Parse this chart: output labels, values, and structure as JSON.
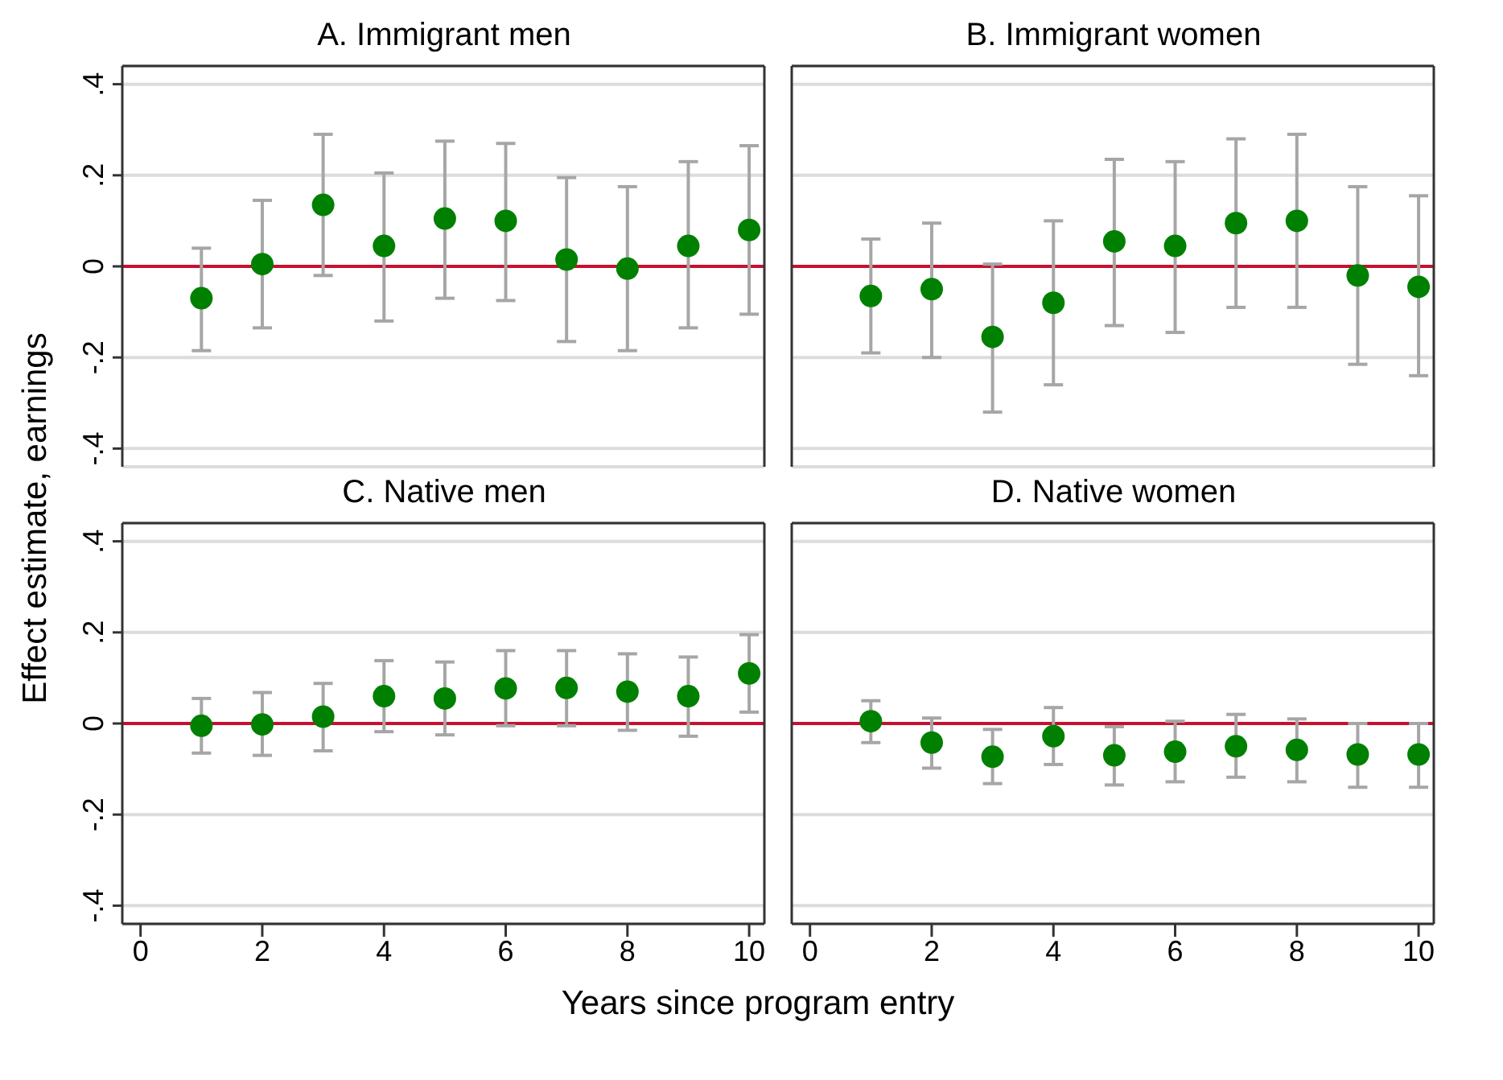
{
  "chart_data": [
    {
      "type": "scatter",
      "title": "A. Immigrant men",
      "ylabel": "Effect estimate, earnings",
      "x": [
        1,
        2,
        3,
        4,
        5,
        6,
        7,
        8,
        9,
        10
      ],
      "series": [
        {
          "color": "#008000",
          "values": [
            -0.07,
            0.005,
            0.135,
            0.045,
            0.105,
            0.1,
            0.015,
            -0.005,
            0.045,
            0.08
          ],
          "errors": [
            [
              -0.185,
              0.04
            ],
            [
              -0.135,
              0.145
            ],
            [
              -0.02,
              0.29
            ],
            [
              -0.12,
              0.205
            ],
            [
              -0.07,
              0.275
            ],
            [
              -0.075,
              0.27
            ],
            [
              -0.165,
              0.195
            ],
            [
              -0.185,
              0.175
            ],
            [
              -0.135,
              0.23
            ],
            [
              -0.105,
              0.265
            ]
          ]
        }
      ],
      "xlim": [
        -0.3,
        10.25
      ],
      "ylim": [
        -0.44,
        0.44
      ],
      "xticks": [
        0,
        2,
        4,
        6,
        8,
        10
      ],
      "yticks": [
        {
          "value": -0.4,
          "label": "-.4"
        },
        {
          "value": -0.2,
          "label": "-.2"
        },
        0,
        {
          "value": 0.2,
          "label": ".2"
        },
        {
          "value": 0.4,
          "label": ".4"
        }
      ],
      "ref_lines": [
        {
          "axis": "y",
          "value": 0,
          "color": "#c8102e"
        }
      ],
      "grid": "y",
      "marker": "circle",
      "tick_labels": "y"
    },
    {
      "type": "scatter",
      "title": "B. Immigrant women",
      "x": [
        1,
        2,
        3,
        4,
        5,
        6,
        7,
        8,
        9,
        10
      ],
      "series": [
        {
          "color": "#008000",
          "values": [
            -0.065,
            -0.05,
            -0.155,
            -0.08,
            0.055,
            0.045,
            0.095,
            0.1,
            -0.02,
            -0.045
          ],
          "errors": [
            [
              -0.19,
              0.06
            ],
            [
              -0.2,
              0.095
            ],
            [
              -0.32,
              0.005
            ],
            [
              -0.26,
              0.1
            ],
            [
              -0.13,
              0.235
            ],
            [
              -0.145,
              0.23
            ],
            [
              -0.09,
              0.28
            ],
            [
              -0.09,
              0.29
            ],
            [
              -0.215,
              0.175
            ],
            [
              -0.24,
              0.155
            ]
          ]
        }
      ],
      "xlim": [
        -0.3,
        10.25
      ],
      "ylim": [
        -0.44,
        0.44
      ],
      "xticks": [
        0,
        2,
        4,
        6,
        8,
        10
      ],
      "yticks": [
        -0.4,
        -0.2,
        0,
        0.2,
        0.4
      ],
      "ref_lines": [
        {
          "axis": "y",
          "value": 0,
          "color": "#c8102e"
        }
      ],
      "grid": "y",
      "marker": "circle",
      "tick_labels": false
    },
    {
      "type": "scatter",
      "title": "C. Native men",
      "xlabel": "Years since program entry",
      "x": [
        1,
        2,
        3,
        4,
        5,
        6,
        7,
        8,
        9,
        10
      ],
      "series": [
        {
          "color": "#008000",
          "values": [
            -0.005,
            -0.002,
            0.015,
            0.06,
            0.055,
            0.077,
            0.078,
            0.07,
            0.06,
            0.11
          ],
          "errors": [
            [
              -0.065,
              0.055
            ],
            [
              -0.07,
              0.068
            ],
            [
              -0.06,
              0.088
            ],
            [
              -0.018,
              0.138
            ],
            [
              -0.025,
              0.135
            ],
            [
              -0.005,
              0.16
            ],
            [
              -0.005,
              0.16
            ],
            [
              -0.015,
              0.153
            ],
            [
              -0.028,
              0.146
            ],
            [
              0.025,
              0.195
            ]
          ]
        }
      ],
      "xlim": [
        -0.3,
        10.25
      ],
      "ylim": [
        -0.44,
        0.44
      ],
      "xticks": [
        0,
        2,
        4,
        6,
        8,
        10
      ],
      "yticks": [
        {
          "value": -0.4,
          "label": "-.4"
        },
        {
          "value": -0.2,
          "label": "-.2"
        },
        0,
        {
          "value": 0.2,
          "label": ".2"
        },
        {
          "value": 0.4,
          "label": ".4"
        }
      ],
      "ref_lines": [
        {
          "axis": "y",
          "value": 0,
          "color": "#c8102e"
        }
      ],
      "grid": "y",
      "marker": "circle"
    },
    {
      "type": "scatter",
      "title": "D. Native women",
      "x": [
        1,
        2,
        3,
        4,
        5,
        6,
        7,
        8,
        9,
        10
      ],
      "series": [
        {
          "color": "#008000",
          "values": [
            0.005,
            -0.042,
            -0.073,
            -0.028,
            -0.07,
            -0.062,
            -0.05,
            -0.058,
            -0.068,
            -0.068
          ],
          "errors": [
            [
              -0.042,
              0.05
            ],
            [
              -0.098,
              0.012
            ],
            [
              -0.132,
              -0.013
            ],
            [
              -0.09,
              0.035
            ],
            [
              -0.135,
              -0.007
            ],
            [
              -0.128,
              0.005
            ],
            [
              -0.118,
              0.02
            ],
            [
              -0.128,
              0.01
            ],
            [
              -0.14,
              0
            ],
            [
              -0.14,
              0
            ]
          ]
        }
      ],
      "xlim": [
        -0.3,
        10.25
      ],
      "ylim": [
        -0.44,
        0.44
      ],
      "xticks": [
        0,
        2,
        4,
        6,
        8,
        10
      ],
      "yticks": [
        -0.4,
        -0.2,
        0,
        0.2,
        0.4
      ],
      "ref_lines": [
        {
          "axis": "y",
          "value": 0,
          "color": "#c8102e"
        }
      ],
      "grid": "y",
      "marker": "circle",
      "tick_labels": "x"
    }
  ]
}
